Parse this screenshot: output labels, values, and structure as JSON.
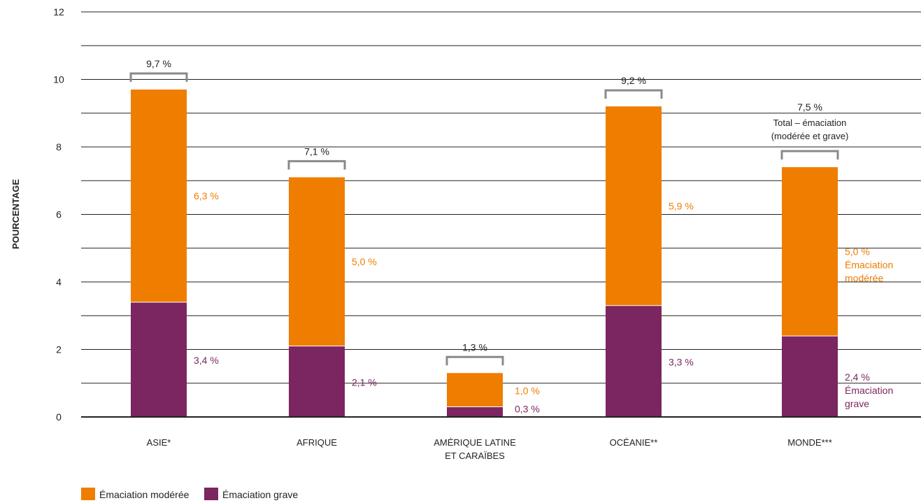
{
  "chart_data": {
    "type": "bar",
    "stacked": true,
    "ylabel": "POURCENTAGE",
    "ylim": [
      0,
      12
    ],
    "yticks": [
      0,
      2,
      4,
      6,
      8,
      10,
      12
    ],
    "grid": true,
    "categories": [
      [
        "ASIE*"
      ],
      [
        "AFRIQUE"
      ],
      [
        "AMÉRIQUE LATINE",
        "ET CARAÏBES"
      ],
      [
        "OCÉANIE**"
      ],
      [
        "MONDE***"
      ]
    ],
    "series": [
      {
        "name": "Émaciation grave",
        "color": "#7b2660",
        "values": [
          3.4,
          2.1,
          0.3,
          3.3,
          2.4
        ],
        "labels": [
          "3,4 %",
          "2,1 %",
          "0,3 %",
          "3,3 %",
          "2,4 %"
        ]
      },
      {
        "name": "Émaciation modérée",
        "color": "#ef7d00",
        "values": [
          6.3,
          5.0,
          1.0,
          5.9,
          5.0
        ],
        "labels": [
          "6,3 %",
          "5,0 %",
          "1,0 %",
          "5,9 %",
          "5,0 %"
        ]
      }
    ],
    "totals": [
      9.7,
      7.1,
      1.3,
      9.2,
      7.5
    ],
    "total_labels": [
      "9,7 %",
      "7,1 %",
      "1,3 %",
      "9,2 %",
      "7,5 %"
    ],
    "annotations": {
      "total_title": "Total – émaciation",
      "total_subtitle": "(modérée et grave)",
      "moderate_note": [
        "Émaciation",
        "modérée"
      ],
      "severe_note": [
        "Émaciation",
        "grave"
      ]
    },
    "legend": {
      "position": "bottom-left",
      "items": [
        {
          "label": "Émaciation modérée",
          "color": "#ef7d00"
        },
        {
          "label": "Émaciation grave",
          "color": "#7b2660"
        }
      ]
    }
  }
}
